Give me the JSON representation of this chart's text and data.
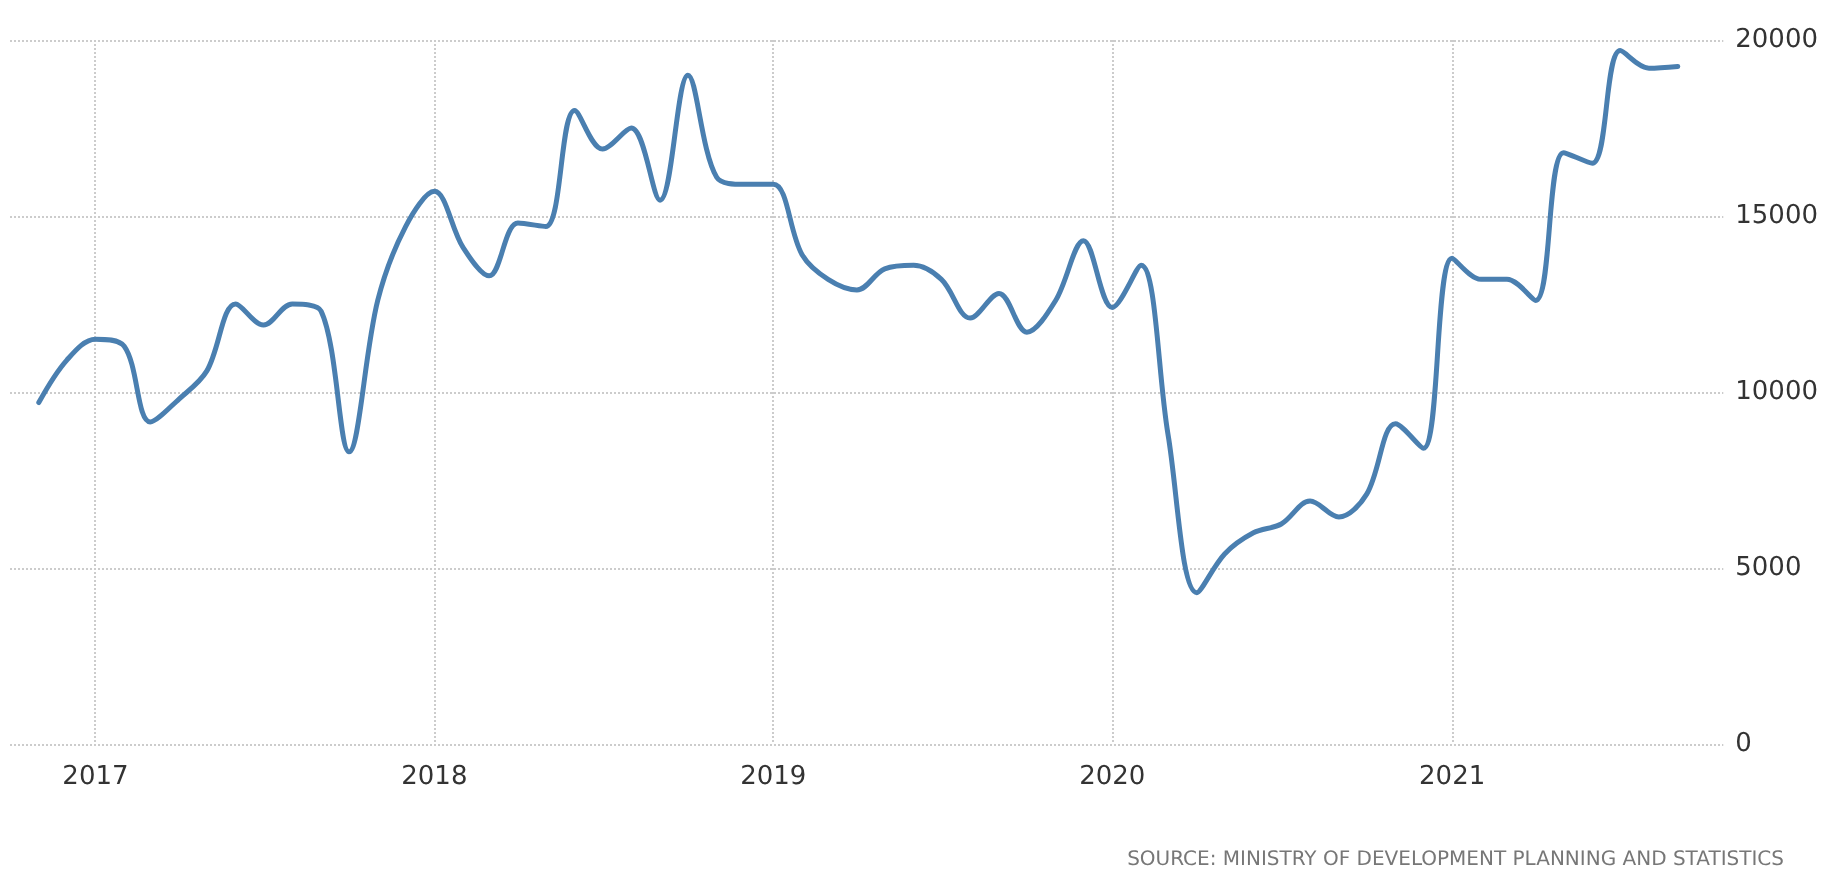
{
  "chart_data": {
    "type": "line",
    "x": [
      "2016-11",
      "2016-12",
      "2017-01",
      "2017-02",
      "2017-03",
      "2017-04",
      "2017-05",
      "2017-06",
      "2017-07",
      "2017-08",
      "2017-09",
      "2017-10",
      "2017-11",
      "2017-12",
      "2018-01",
      "2018-02",
      "2018-03",
      "2018-04",
      "2018-05",
      "2018-06",
      "2018-07",
      "2018-08",
      "2018-09",
      "2018-10",
      "2018-11",
      "2018-12",
      "2019-01",
      "2019-02",
      "2019-03",
      "2019-04",
      "2019-05",
      "2019-06",
      "2019-07",
      "2019-08",
      "2019-09",
      "2019-10",
      "2019-11",
      "2019-12",
      "2020-01",
      "2020-02",
      "2020-03",
      "2020-04",
      "2020-05",
      "2020-06",
      "2020-07",
      "2020-08",
      "2020-09",
      "2020-10",
      "2020-11",
      "2020-12",
      "2021-01",
      "2021-02",
      "2021-03",
      "2021-04",
      "2021-05",
      "2021-06",
      "2021-07",
      "2021-08",
      "2021-09"
    ],
    "series": [
      {
        "color": "#4a7fb0",
        "values": [
          9700,
          10900,
          11500,
          11300,
          9150,
          9800,
          10600,
          12500,
          11900,
          12500,
          12300,
          8300,
          12600,
          14700,
          15700,
          14100,
          13300,
          14800,
          14700,
          18000,
          16900,
          17500,
          15450,
          19000,
          16100,
          15900,
          15900,
          13900,
          13200,
          12900,
          13500,
          13600,
          13200,
          12100,
          12800,
          11700,
          12600,
          14300,
          12400,
          13600,
          8800,
          4300,
          5400,
          6000,
          6250,
          6900,
          6450,
          7100,
          9100,
          8400,
          13800,
          13200,
          13200,
          12600,
          16800,
          16500,
          19700,
          19200,
          19250
        ]
      }
    ],
    "xlim": [
      "2016-10-01",
      "2021-10-20"
    ],
    "xticks": [
      "2017",
      "2018",
      "2019",
      "2020",
      "2021"
    ],
    "ylim": [
      0,
      20000
    ],
    "yticks": [
      0,
      5000,
      10000,
      15000,
      20000
    ],
    "grid": true,
    "marker": "none",
    "line_style": "solid",
    "annotations": [
      "SOURCE: MINISTRY OF DEVELOPMENT PLANNING AND STATISTICS"
    ]
  }
}
